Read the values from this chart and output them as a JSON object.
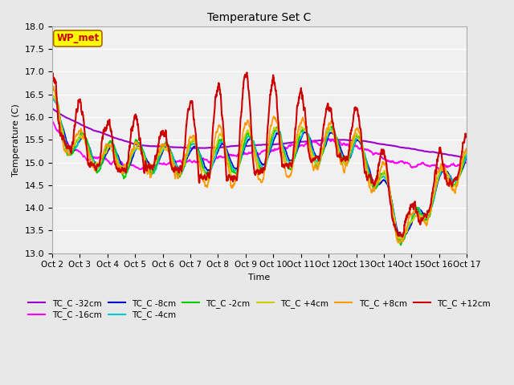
{
  "title": "Temperature Set C",
  "xlabel": "Time",
  "ylabel": "Temperature (C)",
  "ylim": [
    13.0,
    18.0
  ],
  "yticks": [
    13.0,
    13.5,
    14.0,
    14.5,
    15.0,
    15.5,
    16.0,
    16.5,
    17.0,
    17.5,
    18.0
  ],
  "xtick_labels": [
    "Oct 2",
    "Oct 3",
    "Oct 4",
    "Oct 5",
    "Oct 6",
    "Oct 7",
    "Oct 8",
    "Oct 9",
    "Oct 10",
    "Oct 11",
    "Oct 12",
    "Oct 13",
    "Oct 14",
    "Oct 15",
    "Oct 16",
    "Oct 17"
  ],
  "legend_labels": [
    "TC_C -32cm",
    "TC_C -16cm",
    "TC_C -8cm",
    "TC_C -4cm",
    "TC_C -2cm",
    "TC_C +4cm",
    "TC_C +8cm",
    "TC_C +12cm"
  ],
  "line_colors": [
    "#9900cc",
    "#ff00ff",
    "#0000cc",
    "#00cccc",
    "#00cc00",
    "#cccc00",
    "#ff9900",
    "#cc0000"
  ],
  "background_color": "#e8e8e8",
  "plot_bg_color": "#f0f0f0",
  "grid_color": "#ffffff",
  "annotation_text": "WP_met",
  "annotation_color": "#cc0000",
  "annotation_bg": "#ffff00"
}
